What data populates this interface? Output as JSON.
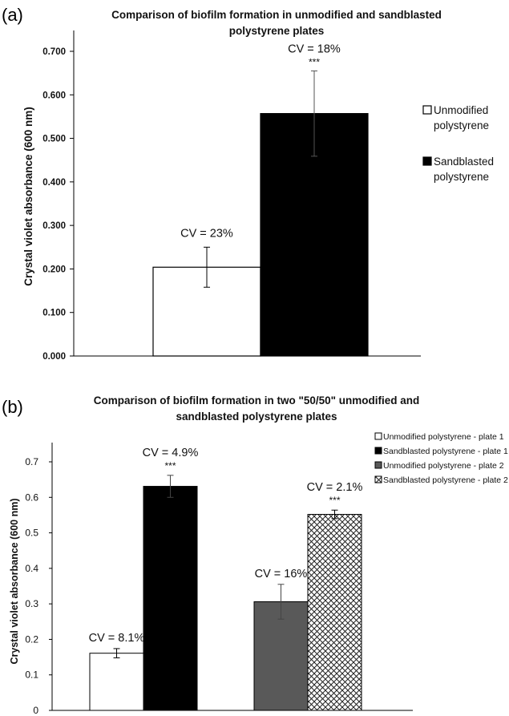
{
  "chart_data": [
    {
      "type": "bar",
      "panel_label": "(a)",
      "title_lines": [
        "Comparison of biofilm formation in unmodified and sandblasted",
        "polystyrene plates"
      ],
      "ylabel": "Crystal violet absorbance (600 nm)",
      "ylim": [
        0,
        0.7
      ],
      "yticks": [
        "0.000",
        "0.100",
        "0.200",
        "0.300",
        "0.400",
        "0.500",
        "0.600",
        "0.700"
      ],
      "legend_position": "right",
      "series": [
        {
          "name_lines": [
            "Unmodified",
            "polystyrene"
          ],
          "value": 0.204,
          "error": 0.046,
          "cv_label": "CV = 23%",
          "significance": "",
          "fill": "#ffffff"
        },
        {
          "name_lines": [
            "Sandblasted",
            "polystyrene"
          ],
          "value": 0.557,
          "error": 0.098,
          "cv_label": "CV = 18%",
          "significance": "***",
          "fill": "#000000"
        }
      ]
    },
    {
      "type": "bar",
      "panel_label": "(b)",
      "title_lines": [
        "Comparison of biofilm formation in two \"50/50\" unmodified and",
        "sandblasted polystyrene plates"
      ],
      "ylabel": "Crystal violet absorbance (600 nm)",
      "ylim": [
        0,
        0.7
      ],
      "yticks": [
        "0",
        "0.1",
        "0.2",
        "0.3",
        "0.4",
        "0.5",
        "0.6",
        "0.7"
      ],
      "legend_position": "top-right",
      "series": [
        {
          "name": "Unmodified polystyrene - plate 1",
          "value": 0.161,
          "error": 0.013,
          "cv_label": "CV = 8.1%",
          "significance": "",
          "fill": "#ffffff"
        },
        {
          "name": "Sandblasted polystyrene - plate 1",
          "value": 0.631,
          "error": 0.031,
          "cv_label": "CV = 4.9%",
          "significance": "***",
          "fill": "#000000"
        },
        {
          "name": "Unmodified polystyrene - plate 2",
          "value": 0.306,
          "error": 0.049,
          "cv_label": "CV = 16%",
          "significance": "",
          "fill": "#595959"
        },
        {
          "name": "Sandblasted polystyrene - plate 2",
          "value": 0.552,
          "error": 0.012,
          "cv_label": "CV = 2.1%",
          "significance": "***",
          "fill": "crosshatch"
        }
      ]
    }
  ]
}
